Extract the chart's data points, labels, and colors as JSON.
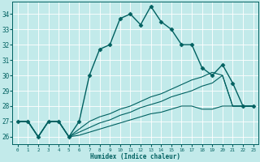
{
  "xlabel": "Humidex (Indice chaleur)",
  "bg_color": "#c2eaea",
  "grid_color": "#ffffff",
  "line_color": "#006060",
  "xlim": [
    -0.5,
    23.5
  ],
  "ylim": [
    25.5,
    34.8
  ],
  "xticks": [
    0,
    1,
    2,
    3,
    4,
    5,
    6,
    7,
    8,
    9,
    10,
    11,
    12,
    13,
    14,
    15,
    16,
    17,
    18,
    19,
    20,
    21,
    22,
    23
  ],
  "yticks": [
    26,
    27,
    28,
    29,
    30,
    31,
    32,
    33,
    34
  ],
  "series": [
    {
      "x": [
        0,
        1,
        2,
        3,
        4,
        5,
        6,
        7,
        8,
        9,
        10,
        11,
        12,
        13,
        14,
        15,
        16,
        17,
        18,
        19,
        20,
        21,
        22,
        23
      ],
      "y": [
        27,
        27,
        26,
        27,
        27,
        26,
        27,
        30,
        31.7,
        32,
        33.7,
        34,
        33.3,
        34.5,
        33.5,
        33,
        32,
        32,
        30.5,
        30,
        30.7,
        29.5,
        28,
        28
      ],
      "linestyle": "-",
      "linewidth": 1.0,
      "marker": "D",
      "markersize": 2.5
    },
    {
      "x": [
        0,
        1,
        2,
        3,
        4,
        5,
        6,
        7,
        8,
        9,
        10,
        11,
        12,
        13,
        14,
        15,
        16,
        17,
        18,
        19,
        20,
        21,
        22,
        23
      ],
      "y": [
        27,
        27,
        26,
        27,
        27,
        26,
        26.5,
        27.0,
        27.3,
        27.5,
        27.8,
        28.0,
        28.3,
        28.6,
        28.8,
        29.1,
        29.4,
        29.7,
        29.9,
        30.2,
        30.0,
        28.0,
        28.0,
        28.0
      ],
      "linestyle": "-",
      "linewidth": 0.8,
      "marker": null,
      "markersize": 0
    },
    {
      "x": [
        0,
        1,
        2,
        3,
        4,
        5,
        6,
        7,
        8,
        9,
        10,
        11,
        12,
        13,
        14,
        15,
        16,
        17,
        18,
        19,
        20,
        21,
        22,
        23
      ],
      "y": [
        27,
        27,
        26,
        27,
        27,
        26,
        26.3,
        26.6,
        26.9,
        27.1,
        27.4,
        27.6,
        27.9,
        28.1,
        28.3,
        28.6,
        28.8,
        29.0,
        29.3,
        29.5,
        30.0,
        28.0,
        28.0,
        28.0
      ],
      "linestyle": "-",
      "linewidth": 0.8,
      "marker": null,
      "markersize": 0
    },
    {
      "x": [
        0,
        1,
        2,
        3,
        4,
        5,
        6,
        7,
        8,
        9,
        10,
        11,
        12,
        13,
        14,
        15,
        16,
        17,
        18,
        19,
        20,
        21,
        22,
        23
      ],
      "y": [
        27,
        27,
        26,
        27,
        27,
        26,
        26.1,
        26.3,
        26.5,
        26.7,
        26.9,
        27.1,
        27.3,
        27.5,
        27.6,
        27.8,
        28.0,
        28.0,
        27.8,
        27.8,
        28.0,
        28.0,
        28.0,
        28.0
      ],
      "linestyle": "-",
      "linewidth": 0.8,
      "marker": null,
      "markersize": 0
    }
  ]
}
